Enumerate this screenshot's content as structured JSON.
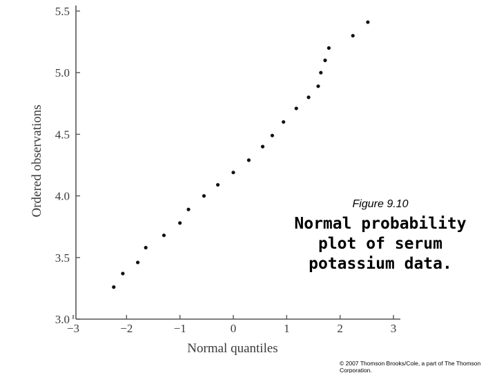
{
  "chart_data": {
    "type": "scatter",
    "title": "",
    "xlabel": "Normal quantiles",
    "ylabel": "Ordered observations",
    "xlim": [
      -3,
      3
    ],
    "ylim": [
      3.0,
      5.5
    ],
    "xticks": [
      -3,
      -2,
      -1,
      0,
      1,
      2,
      3
    ],
    "xtick_labels": [
      "−3",
      "−2",
      "−1",
      "0",
      "1",
      "2",
      "3"
    ],
    "yticks": [
      3.0,
      3.5,
      4.0,
      4.5,
      5.0,
      5.5
    ],
    "ytick_labels": [
      "3.0",
      "3.5",
      "4.0",
      "4.5",
      "5.0",
      "5.5"
    ],
    "grid": false,
    "points": [
      {
        "x": -2.24,
        "y": 3.26
      },
      {
        "x": -2.07,
        "y": 3.37
      },
      {
        "x": -1.79,
        "y": 3.46
      },
      {
        "x": -1.64,
        "y": 3.58
      },
      {
        "x": -1.3,
        "y": 3.68
      },
      {
        "x": -1.0,
        "y": 3.78
      },
      {
        "x": -0.84,
        "y": 3.89
      },
      {
        "x": -0.55,
        "y": 4.0
      },
      {
        "x": -0.29,
        "y": 4.09
      },
      {
        "x": 0.0,
        "y": 4.19
      },
      {
        "x": 0.29,
        "y": 4.29
      },
      {
        "x": 0.55,
        "y": 4.4
      },
      {
        "x": 0.73,
        "y": 4.49
      },
      {
        "x": 0.94,
        "y": 4.6
      },
      {
        "x": 1.18,
        "y": 4.71
      },
      {
        "x": 1.41,
        "y": 4.8
      },
      {
        "x": 1.59,
        "y": 4.89
      },
      {
        "x": 1.64,
        "y": 5.0
      },
      {
        "x": 1.72,
        "y": 5.1
      },
      {
        "x": 1.79,
        "y": 5.2
      },
      {
        "x": 2.24,
        "y": 5.3
      },
      {
        "x": 2.52,
        "y": 5.41
      }
    ]
  },
  "caption": {
    "figure_label": "Figure 9.10",
    "lines": [
      "Normal probability",
      "plot of serum",
      "potassium data."
    ]
  },
  "copyright": {
    "line1": "© 2007 Thomson Brooks/Cole, a part of The Thomson",
    "line2": "Corporation."
  },
  "colors": {
    "axis": "#555555",
    "marker": "#111111",
    "text": "#3a3a3a"
  }
}
